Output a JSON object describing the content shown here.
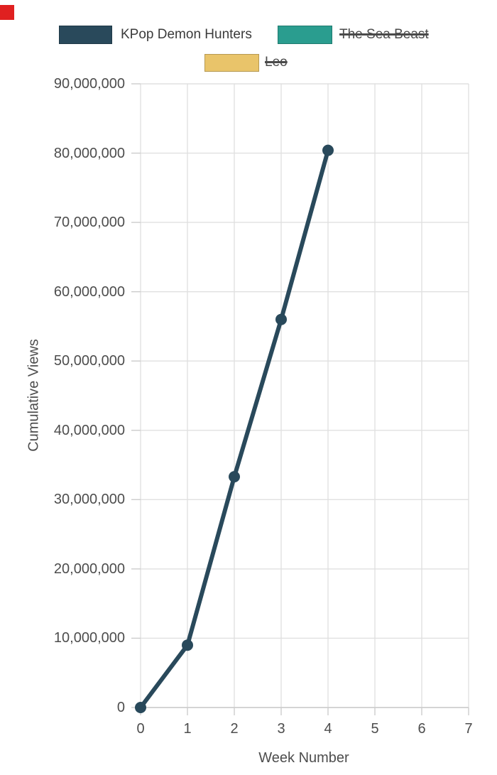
{
  "colors": {
    "series_navy": "#29495b",
    "series_teal": "#2a9d8f",
    "series_gold": "#e9c46a",
    "grid": "#e0e0e0",
    "axis_line": "#cccccc",
    "axis_text": "#4d4d4d",
    "legend_text": "#3b3b3b",
    "corner_marker_red": "#e02020"
  },
  "chart_data": {
    "type": "line",
    "title": "",
    "xlabel": "Week Number",
    "ylabel": "Cumulative Views",
    "xlim": [
      0,
      7
    ],
    "ylim": [
      0,
      90000000
    ],
    "grid": true,
    "legend_position": "top",
    "xticks": [
      0,
      1,
      2,
      3,
      4,
      5,
      6,
      7
    ],
    "xtick_labels": [
      "0",
      "1",
      "2",
      "3",
      "4",
      "5",
      "6",
      "7"
    ],
    "yticks": [
      0,
      10000000,
      20000000,
      30000000,
      40000000,
      50000000,
      60000000,
      70000000,
      80000000,
      90000000
    ],
    "ytick_labels": [
      "0",
      "10,000,000",
      "20,000,000",
      "30,000,000",
      "40,000,000",
      "50,000,000",
      "60,000,000",
      "70,000,000",
      "80,000,000",
      "90,000,000"
    ],
    "x": [
      0,
      1,
      2,
      3,
      4
    ],
    "series": [
      {
        "name": "KPop Demon Hunters",
        "color": "#29495b",
        "disabled": false,
        "values": [
          0,
          9000000,
          33300000,
          56000000,
          80400000
        ]
      },
      {
        "name": "The Sea Beast",
        "color": "#2a9d8f",
        "disabled": true,
        "values": []
      },
      {
        "name": "Leo",
        "color": "#e9c46a",
        "disabled": true,
        "values": []
      }
    ]
  }
}
